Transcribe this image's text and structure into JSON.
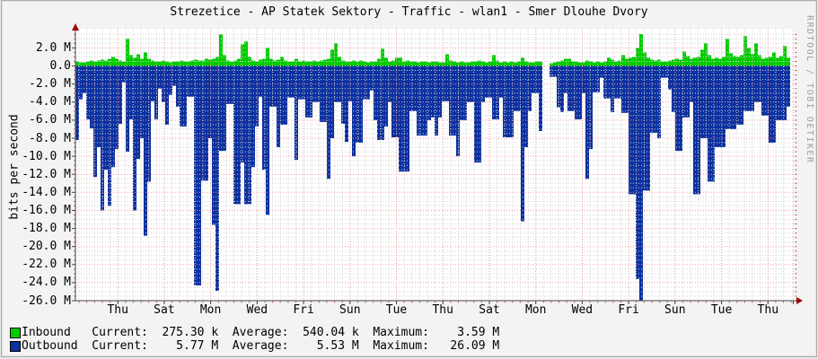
{
  "title": "Strezetice - AP Statek Sektory - Traffic - wlan1 - Smer Dlouhe Dvory",
  "watermark": "RRDTOOL / TOBI OETIKER",
  "y_axis": {
    "label": "bits per second"
  },
  "x_axis": {
    "tick_labels": [
      "Thu",
      "Sat",
      "Mon",
      "Wed",
      "Fri",
      "Sun",
      "Tue",
      "Thu",
      "Sat",
      "Mon",
      "Wed",
      "Fri",
      "Sun",
      "Tue",
      "Thu"
    ]
  },
  "legend": {
    "rows": [
      {
        "name": "Inbound",
        "swatch_color": "#00cc00",
        "text": "Inbound   Current:  275.30 k  Average:  540.04 k  Maximum:    3.59 M"
      },
      {
        "name": "Outbound",
        "swatch_color": "#0d31a0",
        "text": "Outbound  Current:    5.77 M  Average:    5.53 M  Maximum:   26.09 M"
      }
    ]
  },
  "colors": {
    "inbound": "#00cc00",
    "outbound": "#0d31a0",
    "grid_minor": "#d2d2d2",
    "grid_major": "#ef9a9a",
    "axis": "#444444",
    "arrow": "#a00000",
    "plot_bg": "#ffffff",
    "canvas_bg": "#f3f3f3",
    "watermark": "#9e9e9e"
  },
  "chart_data": {
    "type": "area",
    "title": "Strezetice - AP Statek Sektory - Traffic - wlan1 - Smer Dlouhe Dvory",
    "ylabel": "bits per second",
    "unit": "Mbit/s",
    "ylim": [
      -26,
      3.5
    ],
    "grid": true,
    "legend_position": "bottom",
    "x_tick_labels": [
      "Thu",
      "Sat",
      "Mon",
      "Wed",
      "Fri",
      "Sun",
      "Tue",
      "Thu",
      "Sat",
      "Mon",
      "Wed",
      "Fri",
      "Sun",
      "Tue",
      "Thu"
    ],
    "y_ticks": [
      {
        "value": 2.0,
        "label": "2.0 M"
      },
      {
        "value": 0.0,
        "label": "0.0"
      },
      {
        "value": -2.0,
        "label": "-2.0 M"
      },
      {
        "value": -4.0,
        "label": "-4.0 M"
      },
      {
        "value": -6.0,
        "label": "-6.0 M"
      },
      {
        "value": -8.0,
        "label": "-8.0 M"
      },
      {
        "value": -10.0,
        "label": "-10.0 M"
      },
      {
        "value": -12.0,
        "label": "-12.0 M"
      },
      {
        "value": -14.0,
        "label": "-14.0 M"
      },
      {
        "value": -16.0,
        "label": "-16.0 M"
      },
      {
        "value": -18.0,
        "label": "-18.0 M"
      },
      {
        "value": -20.0,
        "label": "-20.0 M"
      },
      {
        "value": -22.0,
        "label": "-22.0 M"
      },
      {
        "value": -24.0,
        "label": "-24.0 M"
      },
      {
        "value": -26.0,
        "label": "-26.0 M"
      }
    ],
    "series": [
      {
        "name": "Inbound",
        "color": "#00cc00",
        "direction": "positive",
        "stats": {
          "current": "275.30 k",
          "average": "540.04 k",
          "maximum": "3.59 M"
        },
        "values": [
          0.5,
          0.4,
          0.4,
          0.5,
          0.6,
          0.5,
          0.6,
          0.7,
          0.6,
          0.8,
          1.0,
          0.8,
          0.6,
          0.5,
          3.0,
          1.2,
          0.9,
          1.3,
          0.8,
          1.5,
          0.8,
          0.6,
          0.5,
          0.5,
          0.6,
          0.5,
          0.4,
          0.5,
          0.5,
          0.6,
          0.5,
          0.5,
          0.6,
          0.7,
          0.6,
          0.6,
          0.8,
          0.7,
          0.8,
          1.0,
          3.5,
          1.2,
          0.6,
          0.5,
          0.6,
          0.8,
          2.4,
          2.7,
          1.0,
          0.6,
          0.5,
          0.7,
          0.8,
          2.0,
          0.8,
          0.6,
          0.7,
          1.0,
          0.6,
          0.5,
          0.5,
          0.8,
          0.5,
          0.6,
          0.5,
          0.5,
          0.6,
          0.5,
          0.6,
          0.7,
          0.8,
          1.8,
          2.5,
          1.0,
          0.6,
          0.5,
          0.5,
          0.6,
          0.5,
          0.6,
          0.5,
          0.4,
          0.5,
          0.5,
          0.8,
          1.9,
          0.9,
          0.5,
          0.6,
          0.9,
          0.9,
          0.5,
          0.6,
          0.5,
          0.5,
          0.4,
          0.5,
          0.5,
          0.4,
          0.5,
          0.5,
          0.4,
          0.4,
          1.3,
          0.6,
          0.5,
          0.4,
          0.5,
          0.4,
          0.4,
          0.5,
          0.5,
          0.6,
          0.5,
          0.4,
          0.5,
          1.2,
          0.6,
          0.4,
          0.5,
          0.4,
          0.5,
          0.4,
          0.5,
          0.9,
          0.5,
          0.4,
          0.4,
          0.5,
          0.5,
          null,
          null,
          0.3,
          0.4,
          0.5,
          0.6,
          0.8,
          0.8,
          0.5,
          0.5,
          0.4,
          0.4,
          0.6,
          0.5,
          0.4,
          0.5,
          0.4,
          0.5,
          0.9,
          0.7,
          0.5,
          0.6,
          1.2,
          0.8,
          0.9,
          1.0,
          2.0,
          3.59,
          1.5,
          0.9,
          0.7,
          0.6,
          0.7,
          0.5,
          0.5,
          0.6,
          0.7,
          0.8,
          0.7,
          1.6,
          1.1,
          0.8,
          0.9,
          1.0,
          1.8,
          2.5,
          1.2,
          0.8,
          0.9,
          0.8,
          1.0,
          3.0,
          1.4,
          1.1,
          1.0,
          1.2,
          3.3,
          2.0,
          1.3,
          2.5,
          1.2,
          0.8,
          0.9,
          1.0,
          1.5,
          0.9,
          1.1,
          2.2,
          0.9
        ]
      },
      {
        "name": "Outbound",
        "color": "#0d31a0",
        "direction": "negative",
        "stats": {
          "current": "5.77 M",
          "average": "5.53 M",
          "maximum": "26.09 M"
        },
        "values": [
          -8.2,
          -3.7,
          -3.0,
          -5.9,
          -6.9,
          -12.3,
          -9.0,
          -16.0,
          -11.5,
          -15.5,
          -11.2,
          -9.2,
          -6.4,
          -1.8,
          -9.5,
          -5.9,
          -16.0,
          -10.3,
          -8.0,
          -18.8,
          -12.8,
          -3.9,
          -5.9,
          -2.5,
          -4.0,
          -6.5,
          -3.2,
          -2.2,
          -4.5,
          -6.7,
          -6.7,
          -3.4,
          -3.4,
          -24.3,
          -24.3,
          -12.7,
          -12.7,
          -8.0,
          -17.6,
          -24.9,
          -9.4,
          -9.4,
          -4.2,
          -4.2,
          -15.3,
          -15.3,
          -10.7,
          -15.3,
          -15.3,
          -11.2,
          -6.7,
          -3.4,
          -11.5,
          -16.5,
          -4.5,
          -4.5,
          -9.0,
          -6.5,
          -6.5,
          -3.5,
          -3.5,
          -10.4,
          -3.7,
          -3.7,
          -5.7,
          -5.7,
          -4.0,
          -4.0,
          -6.2,
          -6.2,
          -12.5,
          -8.0,
          -4.0,
          -4.0,
          -6.4,
          -8.4,
          -3.9,
          -10.0,
          -8.5,
          -8.5,
          -3.7,
          -3.7,
          -2.7,
          -6.0,
          -8.2,
          -8.2,
          -6.7,
          -4.0,
          -7.9,
          -7.9,
          -11.7,
          -11.7,
          -11.7,
          -5.0,
          -5.0,
          -7.7,
          -7.7,
          -7.7,
          -6.0,
          -5.7,
          -7.7,
          -5.7,
          -3.9,
          -3.9,
          -7.7,
          -7.7,
          -10.0,
          -6.0,
          -6.0,
          -4.0,
          -4.0,
          -10.7,
          -10.7,
          -4.0,
          -3.5,
          -3.5,
          -5.9,
          -5.9,
          -3.5,
          -7.9,
          -7.9,
          -7.9,
          -5.0,
          -5.0,
          -17.2,
          -9.0,
          -5.0,
          -3.0,
          -3.0,
          -7.2,
          null,
          null,
          -1.2,
          -1.2,
          -4.6,
          -5.1,
          -3.0,
          -5.0,
          -5.0,
          -5.9,
          -5.9,
          -3.0,
          -12.5,
          -9.2,
          -2.9,
          -2.9,
          -1.3,
          -3.6,
          -3.6,
          -5.1,
          -3.6,
          -3.6,
          -5.2,
          -5.2,
          -14.2,
          -14.2,
          -23.6,
          -26.0,
          -13.8,
          -13.8,
          -7.4,
          -7.4,
          -8.0,
          -1.3,
          -1.3,
          -2.6,
          -5.1,
          -9.4,
          -9.4,
          -5.7,
          -5.7,
          -4.0,
          -14.2,
          -14.2,
          -8.0,
          -8.0,
          -12.8,
          -12.8,
          -9.0,
          -9.0,
          -9.0,
          -7.0,
          -7.0,
          -7.0,
          -6.5,
          -6.5,
          -5.0,
          -5.0,
          -5.0,
          -4.0,
          -4.0,
          -5.5,
          -5.5,
          -8.5,
          -8.5,
          -6.0,
          -6.0,
          -6.0,
          -4.5
        ]
      }
    ]
  }
}
